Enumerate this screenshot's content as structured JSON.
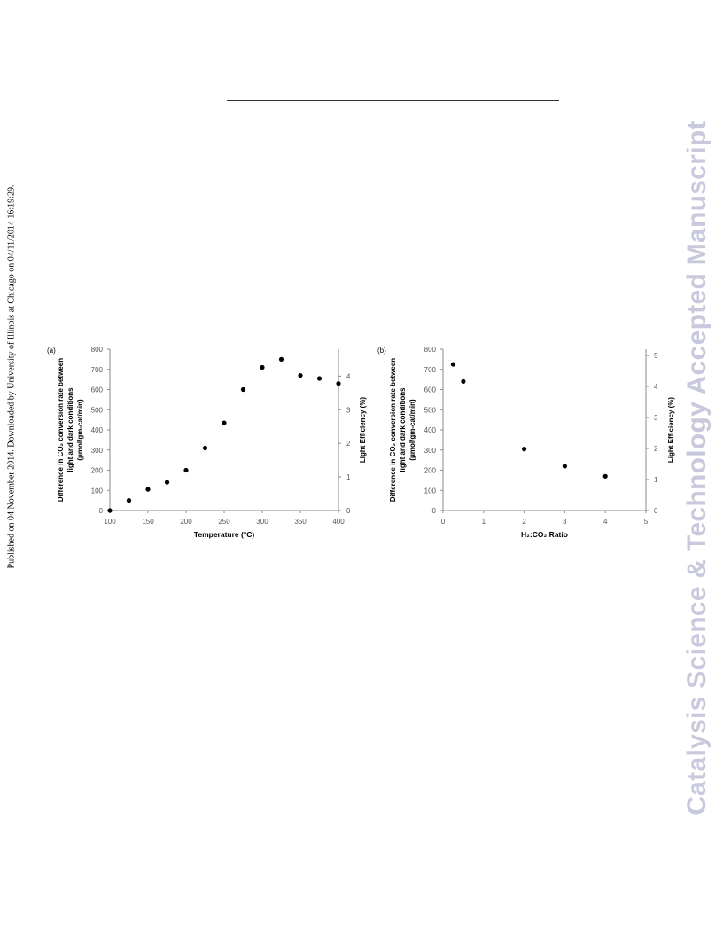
{
  "side_note": "Published on 04 November 2014. Downloaded by University of Illinois at Chicago on 04/11/2014 16:19:29.",
  "watermark": "Catalysis Science & Technology Accepted Manuscript",
  "colors": {
    "marker": "#000000",
    "axis": "#8a8a8a",
    "watermark": "#c9c9de"
  },
  "chart_data": [
    {
      "type": "scatter",
      "panel_label": "(a)",
      "xlabel": "Temperature (°C)",
      "ylabel_lines": [
        "Difference in CO₂ conversion rate between",
        "light and dark conditions",
        "(μmol/gm-cat/min)"
      ],
      "y2label": "Light Efficiency (%)",
      "xlim": [
        100,
        400
      ],
      "ylim": [
        0,
        800
      ],
      "y2lim": [
        0,
        4.8
      ],
      "x_ticks": [
        "100",
        "150",
        "200",
        "250",
        "300",
        "350",
        "400"
      ],
      "y_ticks": [
        "0",
        "100",
        "200",
        "300",
        "400",
        "500",
        "600",
        "700",
        "800"
      ],
      "y2_ticks": [
        "0",
        "1",
        "2",
        "3",
        "4"
      ],
      "grid": false,
      "series": [
        {
          "x": [
            100,
            125,
            150,
            175,
            200,
            225,
            250,
            275,
            300,
            325,
            350,
            375,
            400
          ],
          "y": [
            0,
            50,
            105,
            140,
            200,
            310,
            435,
            600,
            710,
            750,
            670,
            655,
            630
          ]
        }
      ]
    },
    {
      "type": "scatter",
      "panel_label": "(b)",
      "xlabel": "H₂:CO₂ Ratio",
      "ylabel_lines": [
        "Difference in CO₂ conversion rate between",
        "light and dark conditions",
        "(μmol/gm-cat/min)"
      ],
      "y2label": "Light Efficiency (%)",
      "xlim": [
        0,
        5
      ],
      "ylim": [
        0,
        800
      ],
      "y2lim": [
        0,
        5.2
      ],
      "x_ticks": [
        "0",
        "1",
        "2",
        "3",
        "4",
        "5"
      ],
      "y_ticks": [
        "0",
        "100",
        "200",
        "300",
        "400",
        "500",
        "600",
        "700",
        "800"
      ],
      "y2_ticks": [
        "0",
        "1",
        "2",
        "3",
        "4",
        "5"
      ],
      "grid": false,
      "series": [
        {
          "x": [
            0.25,
            0.5,
            2,
            3,
            4
          ],
          "y": [
            725,
            640,
            305,
            220,
            170
          ]
        }
      ]
    }
  ]
}
